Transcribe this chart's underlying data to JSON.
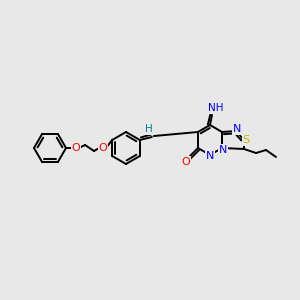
{
  "bg_color": "#e8e8e8",
  "bond_color": "#000000",
  "atom_colors": {
    "O": "#ff0000",
    "N": "#0000ff",
    "S": "#b8b800",
    "H": "#008080",
    "C": "#000000"
  },
  "figsize": [
    3.0,
    3.0
  ],
  "dpi": 100
}
